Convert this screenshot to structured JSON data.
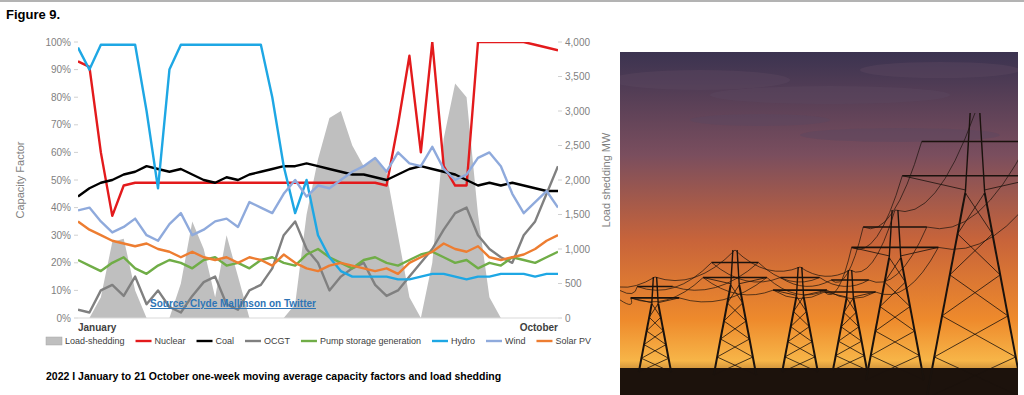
{
  "header": {
    "title": "Figure 9."
  },
  "chart_data": {
    "type": "line",
    "title": "2022 I January to 21 October one-week moving average capacity factors and load shedding",
    "annotations": [
      "Source: Clyde Mallinson on Twitter"
    ],
    "y_label": "Capacity Factor",
    "y2_label": "Load shedding MW",
    "categories": [
      "January",
      null,
      null,
      null,
      null,
      null,
      null,
      null,
      null,
      null,
      null,
      null,
      null,
      null,
      null,
      null,
      null,
      null,
      null,
      null,
      null,
      null,
      null,
      null,
      null,
      null,
      null,
      null,
      null,
      null,
      null,
      null,
      null,
      null,
      null,
      null,
      null,
      null,
      null,
      null,
      null,
      null,
      "October"
    ],
    "ylim": [
      0,
      100
    ],
    "yticks": [
      {
        "value": 0,
        "label": "0%"
      },
      {
        "value": 10,
        "label": "10%"
      },
      {
        "value": 20,
        "label": "20%"
      },
      {
        "value": 30,
        "label": "30%"
      },
      {
        "value": 40,
        "label": "40%"
      },
      {
        "value": 50,
        "label": "50%"
      },
      {
        "value": 60,
        "label": "60%"
      },
      {
        "value": 70,
        "label": "70%"
      },
      {
        "value": 80,
        "label": "80%"
      },
      {
        "value": 90,
        "label": "90%"
      },
      {
        "value": 100,
        "label": "100%"
      }
    ],
    "y2lim": [
      0,
      4000
    ],
    "y2ticks": [
      0,
      500,
      {
        "value": 1000,
        "label": "1,000"
      },
      {
        "value": 1500,
        "label": "1,500"
      },
      {
        "value": 2000,
        "label": "2,000"
      },
      {
        "value": 2500,
        "label": "2,500"
      },
      {
        "value": 3000,
        "label": "3,000"
      },
      {
        "value": 3500,
        "label": "3,500"
      },
      {
        "value": 4000,
        "label": "4,000"
      }
    ],
    "grid": false,
    "legend": "bottom",
    "series": [
      {
        "name": "Load-shedding",
        "type": "area",
        "axis": "y2",
        "color": "#bfbfbf",
        "values": [
          0,
          0,
          300,
          1100,
          1150,
          400,
          0,
          0,
          0,
          500,
          1400,
          1000,
          300,
          1200,
          600,
          0,
          0,
          0,
          0,
          200,
          1500,
          2300,
          2900,
          3000,
          2500,
          2200,
          2300,
          2100,
          1200,
          300,
          0,
          800,
          2600,
          3400,
          3200,
          1500,
          300,
          0,
          0,
          0,
          0,
          0,
          0
        ]
      },
      {
        "name": "Nuclear",
        "type": "line",
        "color": "#e31a1c",
        "values": [
          93,
          91,
          60,
          37,
          48,
          49,
          49,
          49,
          49,
          49,
          49,
          49,
          49,
          49,
          49,
          49,
          49,
          49,
          49,
          49,
          49,
          49,
          49,
          49,
          49,
          49,
          49,
          48,
          70,
          95,
          60,
          100,
          55,
          48,
          48,
          100,
          100,
          100,
          100,
          100,
          99,
          98,
          97
        ]
      },
      {
        "name": "Coal",
        "type": "line",
        "color": "#000000",
        "values": [
          44,
          47,
          49,
          50,
          52,
          53,
          55,
          54,
          53,
          54,
          52,
          50,
          49,
          51,
          50,
          52,
          53,
          54,
          55,
          55,
          56,
          55,
          54,
          53,
          52,
          52,
          51,
          50,
          52,
          54,
          55,
          54,
          53,
          52,
          50,
          48,
          49,
          48,
          49,
          48,
          47,
          46,
          46
        ]
      },
      {
        "name": "OCGT",
        "type": "line",
        "color": "#808080",
        "values": [
          3,
          2,
          10,
          12,
          8,
          15,
          5,
          10,
          4,
          2,
          8,
          13,
          15,
          5,
          3,
          10,
          12,
          18,
          30,
          35,
          25,
          20,
          10,
          15,
          18,
          20,
          12,
          8,
          10,
          15,
          20,
          25,
          32,
          38,
          40,
          30,
          25,
          22,
          20,
          30,
          35,
          45,
          55
        ]
      },
      {
        "name": "Pump storage generation",
        "type": "line",
        "color": "#70ad47",
        "values": [
          21,
          19,
          17,
          20,
          22,
          18,
          16,
          19,
          21,
          20,
          18,
          21,
          22,
          19,
          20,
          18,
          21,
          22,
          20,
          19,
          23,
          25,
          22,
          20,
          18,
          21,
          22,
          20,
          19,
          21,
          23,
          24,
          22,
          20,
          21,
          18,
          20,
          19,
          22,
          21,
          20,
          22,
          24
        ]
      },
      {
        "name": "Hydro",
        "type": "line",
        "color": "#1ea7e4",
        "values": [
          98,
          90,
          99,
          99,
          99,
          99,
          75,
          47,
          90,
          99,
          99,
          99,
          99,
          99,
          99,
          99,
          99,
          80,
          55,
          38,
          50,
          30,
          22,
          17,
          15,
          15,
          15,
          15,
          14,
          14,
          15,
          16,
          16,
          15,
          14,
          15,
          15,
          16,
          16,
          16,
          15,
          16,
          16
        ]
      },
      {
        "name": "Wind",
        "type": "line",
        "color": "#8faadc",
        "values": [
          39,
          40,
          35,
          31,
          33,
          36,
          30,
          28,
          34,
          38,
          30,
          32,
          35,
          36,
          33,
          42,
          40,
          38,
          45,
          50,
          44,
          48,
          47,
          50,
          53,
          55,
          58,
          53,
          60,
          56,
          55,
          62,
          54,
          50,
          52,
          58,
          60,
          55,
          45,
          38,
          42,
          46,
          40
        ]
      },
      {
        "name": "Solar PV",
        "type": "line",
        "color": "#ed7d31",
        "values": [
          35,
          32,
          30,
          28,
          27,
          26,
          27,
          25,
          24,
          22,
          24,
          22,
          21,
          22,
          20,
          22,
          21,
          19,
          23,
          20,
          18,
          17,
          19,
          20,
          19,
          18,
          17,
          18,
          16,
          20,
          22,
          24,
          27,
          25,
          24,
          26,
          22,
          21,
          22,
          23,
          25,
          28,
          30
        ]
      }
    ]
  }
}
